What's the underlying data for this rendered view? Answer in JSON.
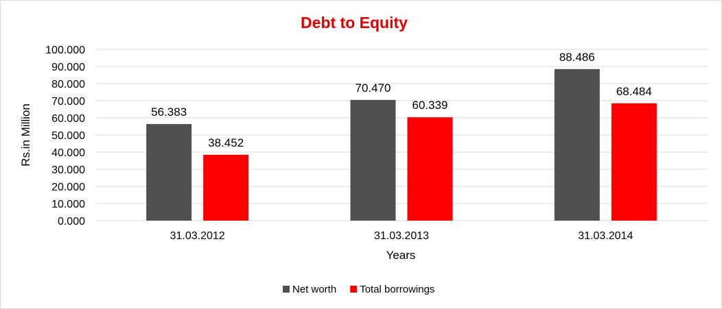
{
  "chart_data": {
    "type": "bar",
    "title": "Debt to Equity",
    "xlabel": "Years",
    "ylabel": "Rs.in Million",
    "categories": [
      "31.03.2012",
      "31.03.2013",
      "31.03.2014"
    ],
    "series": [
      {
        "name": "Net worth",
        "color": "#505050",
        "values": [
          56.383,
          70.47,
          88.486
        ],
        "labels": [
          "56.383",
          "70.470",
          "88.486"
        ]
      },
      {
        "name": "Total borrowings",
        "color": "#ff0000",
        "values": [
          38.452,
          60.339,
          68.484
        ],
        "labels": [
          "38.452",
          "60.339",
          "68.484"
        ]
      }
    ],
    "ylim": [
      0,
      100
    ],
    "yticks": [
      "0.000",
      "10.000",
      "20.000",
      "30.000",
      "40.000",
      "50.000",
      "60.000",
      "70.000",
      "80.000",
      "90.000",
      "100.000"
    ],
    "grid": true,
    "legend_position": "bottom",
    "title_color": "#e00000",
    "gridline_color": "#d9d9d9"
  }
}
